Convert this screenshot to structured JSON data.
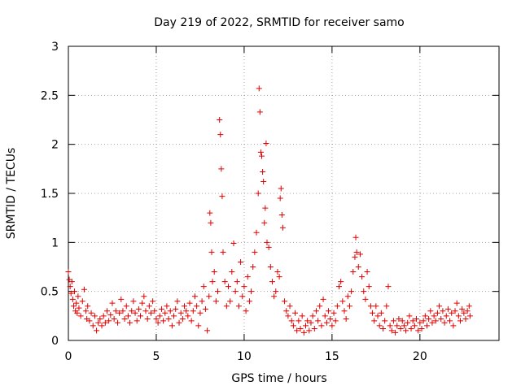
{
  "chart_data": {
    "type": "scatter",
    "title": "Day 219 of 2022, SRMTID for receiver samo",
    "xlabel": "GPS time / hours",
    "ylabel": "SRMTID / TECUs",
    "xlim": [
      0,
      24.5
    ],
    "ylim": [
      0,
      3
    ],
    "xticks": [
      0,
      5,
      10,
      15,
      20
    ],
    "xtick_labels": [
      "0",
      "5",
      "10",
      "15",
      "20"
    ],
    "yticks": [
      0,
      0.5,
      1,
      1.5,
      2,
      2.5,
      3
    ],
    "ytick_labels": [
      "0",
      "0.5",
      "1",
      "1.5",
      "2",
      "2.5",
      "3"
    ],
    "grid": true,
    "marker": "+",
    "marker_color": "#e00000",
    "series": [
      {
        "name": "SRMTID",
        "points": [
          [
            0.0,
            0.7
          ],
          [
            0.05,
            0.62
          ],
          [
            0.1,
            0.55
          ],
          [
            0.15,
            0.48
          ],
          [
            0.2,
            0.6
          ],
          [
            0.25,
            0.42
          ],
          [
            0.3,
            0.35
          ],
          [
            0.35,
            0.5
          ],
          [
            0.4,
            0.3
          ],
          [
            0.45,
            0.38
          ],
          [
            0.5,
            0.28
          ],
          [
            0.55,
            0.45
          ],
          [
            0.6,
            0.33
          ],
          [
            0.7,
            0.25
          ],
          [
            0.8,
            0.4
          ],
          [
            0.9,
            0.52
          ],
          [
            1.0,
            0.3
          ],
          [
            1.05,
            0.22
          ],
          [
            1.1,
            0.35
          ],
          [
            1.2,
            0.2
          ],
          [
            1.3,
            0.28
          ],
          [
            1.4,
            0.15
          ],
          [
            1.5,
            0.25
          ],
          [
            1.6,
            0.1
          ],
          [
            1.7,
            0.18
          ],
          [
            1.8,
            0.22
          ],
          [
            1.9,
            0.15
          ],
          [
            2.0,
            0.25
          ],
          [
            2.1,
            0.18
          ],
          [
            2.2,
            0.3
          ],
          [
            2.3,
            0.2
          ],
          [
            2.4,
            0.26
          ],
          [
            2.5,
            0.38
          ],
          [
            2.6,
            0.22
          ],
          [
            2.7,
            0.3
          ],
          [
            2.8,
            0.18
          ],
          [
            2.9,
            0.28
          ],
          [
            3.0,
            0.42
          ],
          [
            3.1,
            0.3
          ],
          [
            3.2,
            0.22
          ],
          [
            3.3,
            0.35
          ],
          [
            3.4,
            0.25
          ],
          [
            3.5,
            0.18
          ],
          [
            3.6,
            0.3
          ],
          [
            3.7,
            0.4
          ],
          [
            3.8,
            0.28
          ],
          [
            3.9,
            0.2
          ],
          [
            4.0,
            0.32
          ],
          [
            4.1,
            0.25
          ],
          [
            4.2,
            0.38
          ],
          [
            4.3,
            0.45
          ],
          [
            4.4,
            0.3
          ],
          [
            4.5,
            0.22
          ],
          [
            4.6,
            0.35
          ],
          [
            4.7,
            0.28
          ],
          [
            4.8,
            0.4
          ],
          [
            4.9,
            0.3
          ],
          [
            5.0,
            0.22
          ],
          [
            5.1,
            0.18
          ],
          [
            5.2,
            0.25
          ],
          [
            5.3,
            0.32
          ],
          [
            5.4,
            0.2
          ],
          [
            5.5,
            0.28
          ],
          [
            5.6,
            0.35
          ],
          [
            5.7,
            0.22
          ],
          [
            5.8,
            0.3
          ],
          [
            5.9,
            0.15
          ],
          [
            6.0,
            0.25
          ],
          [
            6.1,
            0.32
          ],
          [
            6.2,
            0.4
          ],
          [
            6.3,
            0.18
          ],
          [
            6.4,
            0.28
          ],
          [
            6.5,
            0.22
          ],
          [
            6.6,
            0.35
          ],
          [
            6.7,
            0.3
          ],
          [
            6.8,
            0.25
          ],
          [
            6.9,
            0.38
          ],
          [
            7.0,
            0.2
          ],
          [
            7.1,
            0.3
          ],
          [
            7.2,
            0.45
          ],
          [
            7.3,
            0.35
          ],
          [
            7.4,
            0.15
          ],
          [
            7.5,
            0.28
          ],
          [
            7.6,
            0.4
          ],
          [
            7.7,
            0.55
          ],
          [
            7.8,
            0.32
          ],
          [
            7.9,
            0.1
          ],
          [
            8.0,
            0.45
          ],
          [
            8.05,
            1.3
          ],
          [
            8.1,
            1.2
          ],
          [
            8.15,
            0.9
          ],
          [
            8.2,
            0.6
          ],
          [
            8.3,
            0.7
          ],
          [
            8.4,
            0.4
          ],
          [
            8.5,
            0.5
          ],
          [
            8.6,
            2.25
          ],
          [
            8.65,
            2.1
          ],
          [
            8.7,
            1.75
          ],
          [
            8.75,
            1.47
          ],
          [
            8.8,
            0.9
          ],
          [
            8.9,
            0.6
          ],
          [
            9.0,
            0.35
          ],
          [
            9.1,
            0.55
          ],
          [
            9.2,
            0.4
          ],
          [
            9.3,
            0.7
          ],
          [
            9.4,
            0.99
          ],
          [
            9.5,
            0.5
          ],
          [
            9.6,
            0.6
          ],
          [
            9.7,
            0.35
          ],
          [
            9.8,
            0.8
          ],
          [
            9.9,
            0.45
          ],
          [
            10.0,
            0.55
          ],
          [
            10.1,
            0.3
          ],
          [
            10.2,
            0.65
          ],
          [
            10.3,
            0.4
          ],
          [
            10.4,
            0.5
          ],
          [
            10.5,
            0.75
          ],
          [
            10.6,
            0.9
          ],
          [
            10.7,
            1.1
          ],
          [
            10.8,
            1.5
          ],
          [
            10.85,
            2.57
          ],
          [
            10.9,
            2.33
          ],
          [
            10.95,
            1.92
          ],
          [
            11.0,
            1.88
          ],
          [
            11.05,
            1.72
          ],
          [
            11.1,
            1.62
          ],
          [
            11.15,
            1.2
          ],
          [
            11.2,
            1.35
          ],
          [
            11.25,
            2.01
          ],
          [
            11.3,
            1.0
          ],
          [
            11.4,
            0.95
          ],
          [
            11.5,
            0.75
          ],
          [
            11.6,
            0.6
          ],
          [
            11.7,
            0.45
          ],
          [
            11.8,
            0.5
          ],
          [
            11.9,
            0.7
          ],
          [
            12.0,
            0.65
          ],
          [
            12.05,
            1.45
          ],
          [
            12.1,
            1.55
          ],
          [
            12.15,
            1.28
          ],
          [
            12.2,
            1.15
          ],
          [
            12.3,
            0.4
          ],
          [
            12.4,
            0.3
          ],
          [
            12.5,
            0.25
          ],
          [
            12.6,
            0.35
          ],
          [
            12.7,
            0.2
          ],
          [
            12.8,
            0.15
          ],
          [
            12.9,
            0.28
          ],
          [
            13.0,
            0.1
          ],
          [
            13.1,
            0.2
          ],
          [
            13.2,
            0.12
          ],
          [
            13.3,
            0.25
          ],
          [
            13.4,
            0.08
          ],
          [
            13.5,
            0.15
          ],
          [
            13.6,
            0.2
          ],
          [
            13.7,
            0.1
          ],
          [
            13.8,
            0.18
          ],
          [
            13.9,
            0.25
          ],
          [
            14.0,
            0.12
          ],
          [
            14.1,
            0.3
          ],
          [
            14.2,
            0.2
          ],
          [
            14.3,
            0.35
          ],
          [
            14.4,
            0.15
          ],
          [
            14.5,
            0.42
          ],
          [
            14.6,
            0.25
          ],
          [
            14.7,
            0.18
          ],
          [
            14.8,
            0.3
          ],
          [
            14.9,
            0.22
          ],
          [
            15.0,
            0.15
          ],
          [
            15.1,
            0.28
          ],
          [
            15.2,
            0.2
          ],
          [
            15.3,
            0.35
          ],
          [
            15.4,
            0.55
          ],
          [
            15.5,
            0.6
          ],
          [
            15.6,
            0.4
          ],
          [
            15.7,
            0.3
          ],
          [
            15.8,
            0.22
          ],
          [
            15.9,
            0.45
          ],
          [
            16.0,
            0.35
          ],
          [
            16.1,
            0.5
          ],
          [
            16.2,
            0.7
          ],
          [
            16.3,
            0.85
          ],
          [
            16.35,
            1.05
          ],
          [
            16.4,
            0.9
          ],
          [
            16.5,
            0.75
          ],
          [
            16.6,
            0.88
          ],
          [
            16.7,
            0.65
          ],
          [
            16.8,
            0.5
          ],
          [
            16.9,
            0.42
          ],
          [
            17.0,
            0.7
          ],
          [
            17.1,
            0.55
          ],
          [
            17.2,
            0.35
          ],
          [
            17.3,
            0.28
          ],
          [
            17.4,
            0.2
          ],
          [
            17.5,
            0.35
          ],
          [
            17.6,
            0.25
          ],
          [
            17.7,
            0.15
          ],
          [
            17.8,
            0.28
          ],
          [
            17.9,
            0.12
          ],
          [
            18.0,
            0.2
          ],
          [
            18.1,
            0.35
          ],
          [
            18.2,
            0.55
          ],
          [
            18.3,
            0.15
          ],
          [
            18.4,
            0.1
          ],
          [
            18.5,
            0.2
          ],
          [
            18.6,
            0.08
          ],
          [
            18.7,
            0.15
          ],
          [
            18.8,
            0.22
          ],
          [
            18.9,
            0.12
          ],
          [
            19.0,
            0.2
          ],
          [
            19.1,
            0.15
          ],
          [
            19.2,
            0.1
          ],
          [
            19.3,
            0.18
          ],
          [
            19.4,
            0.25
          ],
          [
            19.5,
            0.12
          ],
          [
            19.6,
            0.2
          ],
          [
            19.7,
            0.15
          ],
          [
            19.8,
            0.22
          ],
          [
            19.9,
            0.1
          ],
          [
            20.0,
            0.18
          ],
          [
            20.1,
            0.12
          ],
          [
            20.2,
            0.2
          ],
          [
            20.3,
            0.25
          ],
          [
            20.4,
            0.15
          ],
          [
            20.5,
            0.22
          ],
          [
            20.6,
            0.3
          ],
          [
            20.7,
            0.18
          ],
          [
            20.8,
            0.25
          ],
          [
            20.9,
            0.2
          ],
          [
            21.0,
            0.28
          ],
          [
            21.1,
            0.35
          ],
          [
            21.2,
            0.22
          ],
          [
            21.3,
            0.3
          ],
          [
            21.4,
            0.18
          ],
          [
            21.5,
            0.25
          ],
          [
            21.6,
            0.32
          ],
          [
            21.7,
            0.2
          ],
          [
            21.8,
            0.28
          ],
          [
            21.9,
            0.15
          ],
          [
            22.0,
            0.3
          ],
          [
            22.1,
            0.38
          ],
          [
            22.2,
            0.25
          ],
          [
            22.3,
            0.2
          ],
          [
            22.4,
            0.32
          ],
          [
            22.5,
            0.28
          ],
          [
            22.6,
            0.22
          ],
          [
            22.7,
            0.3
          ],
          [
            22.8,
            0.35
          ],
          [
            22.85,
            0.25
          ]
        ]
      }
    ]
  }
}
